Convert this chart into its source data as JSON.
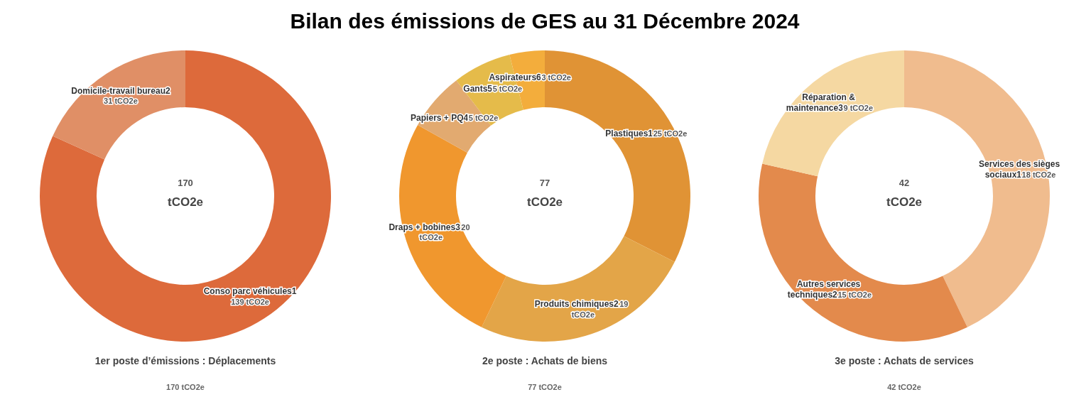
{
  "chart_data": [
    {
      "type": "donut",
      "xlabel": "1er poste d’émissions : Déplacements",
      "categories": [
        "Conso parc véhicules1",
        "Domicile-travail bureau2"
      ],
      "values": [
        139,
        31
      ],
      "colors": [
        "#dd6a3b",
        "#e08f66"
      ],
      "value_labels": [
        "139 tCO2e",
        "31 tCO2e"
      ],
      "annotations": [
        "170",
        "tCO2e",
        "170 tCO2e"
      ]
    },
    {
      "type": "donut",
      "title": "Bilan des émissions de GES au 31 Décembre 2024",
      "xlabel": "2e poste : Achats de biens",
      "categories": [
        "Plastiques1",
        "Produits chimiques2",
        "Draps + bobines3",
        "Papiers + PQ4",
        "Gants5",
        "Aspirateurs6"
      ],
      "values": [
        25,
        19,
        20,
        5,
        5,
        3
      ],
      "colors": [
        "#e09335",
        "#e3a548",
        "#f0972e",
        "#e2aa70",
        "#e5bb4a",
        "#f3ad3c"
      ],
      "value_labels": [
        "25 tCO2e",
        "19 tCO2e",
        "20 tCO2e",
        "5 tCO2e",
        "5 tCO2e",
        "3 tCO2e"
      ],
      "annotations": [
        "77",
        "tCO2e",
        "77 tCO2e"
      ]
    },
    {
      "type": "donut",
      "xlabel": "3e poste : Achats de services",
      "categories": [
        "Services des sièges sociaux1",
        "Autres services techniques2",
        "Réparation & maintenance3"
      ],
      "values": [
        18,
        15,
        9
      ],
      "colors": [
        "#f0bc8e",
        "#e38a4c",
        "#f5d8a2"
      ],
      "value_labels": [
        "18 tCO2e",
        "15 tCO2e",
        "9 tCO2e"
      ],
      "annotations": [
        "42",
        "tCO2e",
        "42 tCO2e"
      ]
    }
  ]
}
